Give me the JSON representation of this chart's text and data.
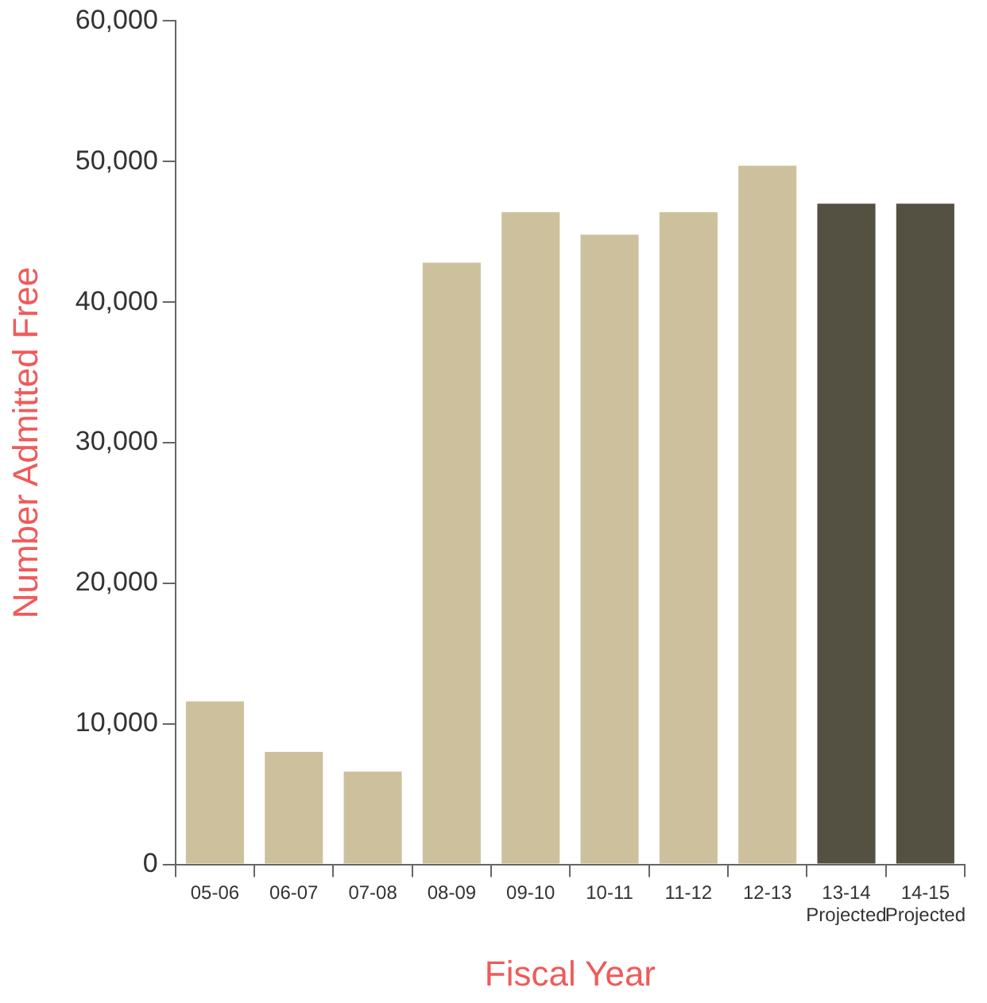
{
  "chart_data": {
    "type": "bar",
    "categories": [
      "05-06",
      "06-07",
      "07-08",
      "08-09",
      "09-10",
      "10-11",
      "11-12",
      "12-13",
      "13-14\nProjected",
      "14-15\nProjected"
    ],
    "values": [
      11600,
      8000,
      6600,
      42800,
      46400,
      44800,
      46400,
      49700,
      47000,
      47000
    ],
    "colors": [
      "#cdc19d",
      "#cdc19d",
      "#cdc19d",
      "#cdc19d",
      "#cdc19d",
      "#cdc19d",
      "#cdc19d",
      "#cdc19d",
      "#545042",
      "#545042"
    ],
    "xlabel": "Fiscal Year",
    "ylabel": "Number Admitted Free",
    "ylim": [
      0,
      60000
    ],
    "yticks": [
      0,
      {
        "value": 10000,
        "label": "10,000"
      },
      {
        "value": 20000,
        "label": "20,000"
      },
      {
        "value": 30000,
        "label": "30,000"
      },
      {
        "value": 40000,
        "label": "40,000"
      },
      {
        "value": 50000,
        "label": "50,000"
      },
      {
        "value": 60000,
        "label": "60,000"
      }
    ],
    "grid": false,
    "legend": false
  }
}
